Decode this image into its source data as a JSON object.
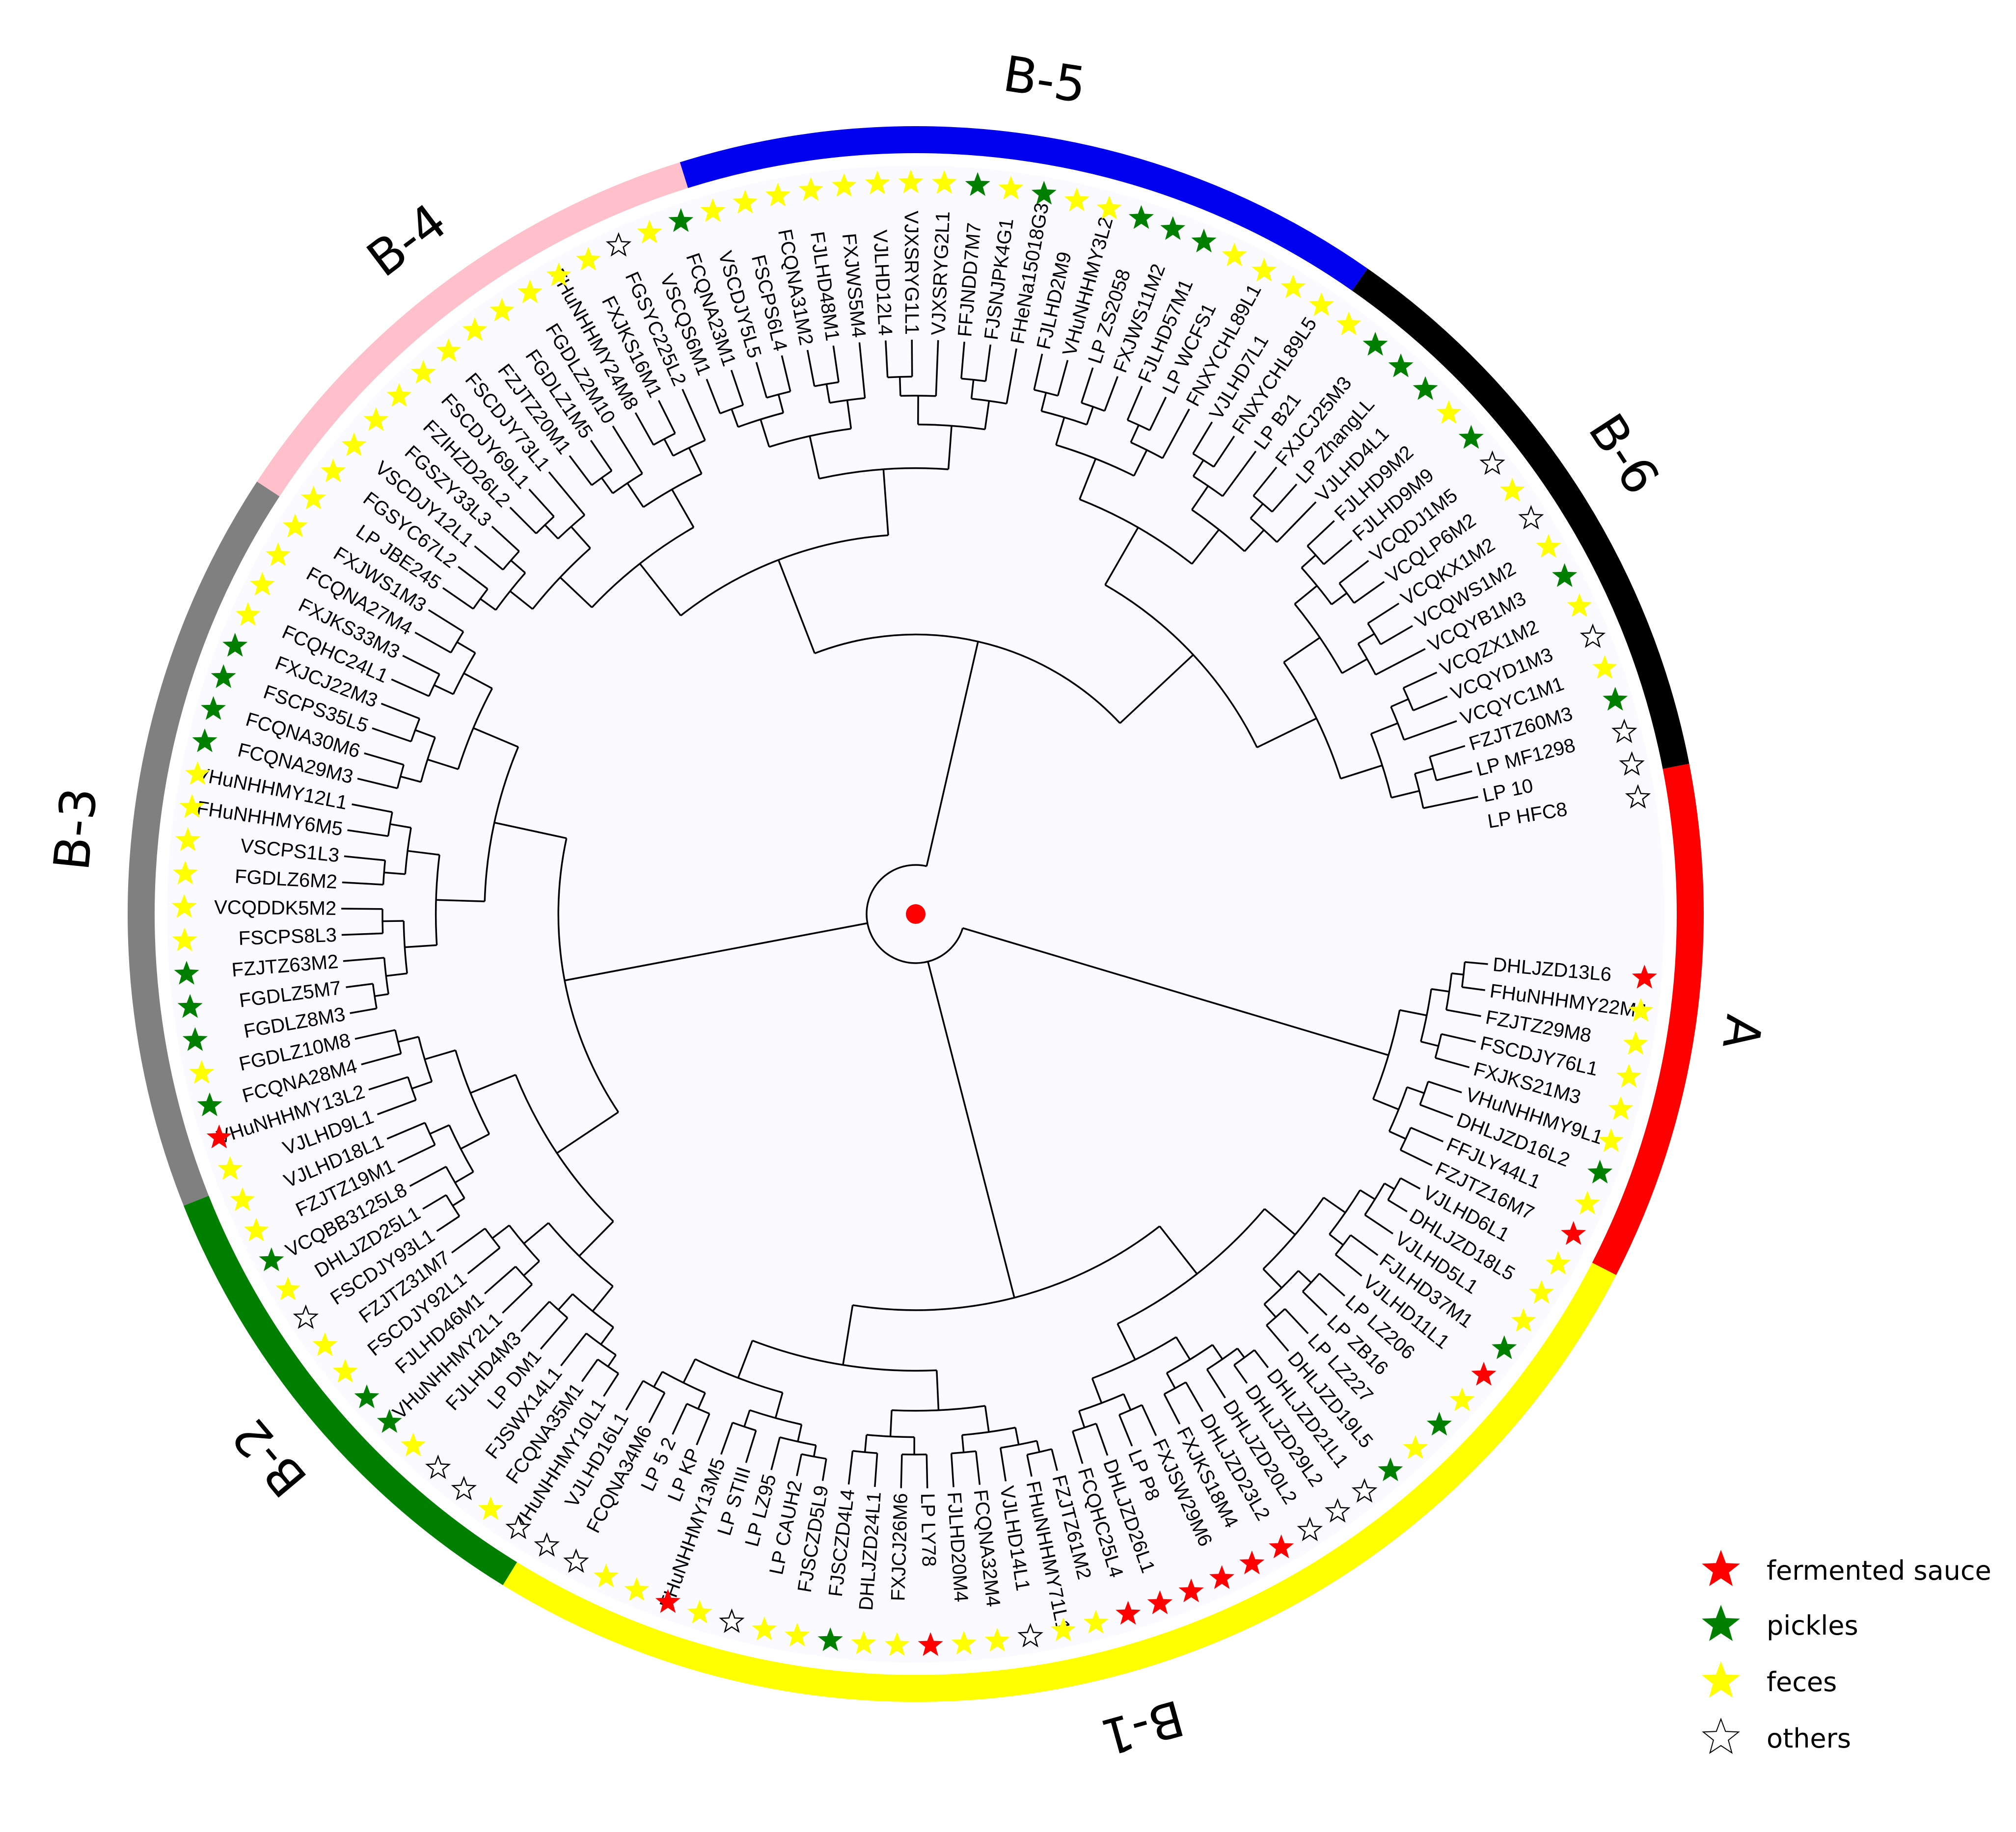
{
  "leaves": [
    {
      "label": "DHLJZD13L6",
      "source": "fermented"
    },
    {
      "label": "FHuNHHMY22M4",
      "source": "feces"
    },
    {
      "label": "FZJTZ29M8",
      "source": "feces"
    },
    {
      "label": "FSCDJY76L1",
      "source": "feces"
    },
    {
      "label": "FXJKS21M3",
      "source": "feces"
    },
    {
      "label": "VHuNHHMY9L1",
      "source": "feces"
    },
    {
      "label": "DHLJZD16L2",
      "source": "pickles"
    },
    {
      "label": "FFJLY44L1",
      "source": "feces"
    },
    {
      "label": "FZJTZ16M7",
      "source": "fermented"
    },
    {
      "label": "VJLHD6L1",
      "source": "feces"
    },
    {
      "label": "DHLJZD18L5",
      "source": "feces"
    },
    {
      "label": "VJLHD5L1",
      "source": "feces"
    },
    {
      "label": "FJLHD37M1",
      "source": "pickles"
    },
    {
      "label": "VJLHD11L1",
      "source": "fermented"
    },
    {
      "label": "LP LZ206",
      "source": "feces"
    },
    {
      "label": "LP ZB16",
      "source": "pickles"
    },
    {
      "label": "LP LZ227",
      "source": "feces"
    },
    {
      "label": "DHLJZD19L5",
      "source": "pickles"
    },
    {
      "label": "DHLJZD21L1",
      "source": "others"
    },
    {
      "label": "DHLJZD29L2",
      "source": "others"
    },
    {
      "label": "DHLJZD20L2",
      "source": "others"
    },
    {
      "label": "DHLJZD23L2",
      "source": "fermented"
    },
    {
      "label": "FXJKS18M4",
      "source": "fermented"
    },
    {
      "label": "FXJSW29M6",
      "source": "fermented"
    },
    {
      "label": "LP P8",
      "source": "fermented"
    },
    {
      "label": "DHLJZD26L1",
      "source": "fermented"
    },
    {
      "label": "FCQHC25L4",
      "source": "fermented"
    },
    {
      "label": "FZJTZ61M2",
      "source": "feces"
    },
    {
      "label": "FHuNHHMY71L1",
      "source": "feces"
    },
    {
      "label": "VJLHD14L1",
      "source": "others"
    },
    {
      "label": "FCQNA32M4",
      "source": "feces"
    },
    {
      "label": "FJLHD20M4",
      "source": "feces"
    },
    {
      "label": "LP LY78",
      "source": "fermented"
    },
    {
      "label": "FXJCJ26M6",
      "source": "feces"
    },
    {
      "label": "DHLJZD24L1",
      "source": "feces"
    },
    {
      "label": "FJSCZD4L4",
      "source": "pickles"
    },
    {
      "label": "FJSCZD5L9",
      "source": "feces"
    },
    {
      "label": "LP CAUH2",
      "source": "feces"
    },
    {
      "label": "LP LZ95",
      "source": "others"
    },
    {
      "label": "LP STIII",
      "source": "feces"
    },
    {
      "label": "FHuNHHMY13M5",
      "source": "fermented"
    },
    {
      "label": "LP KP",
      "source": "feces"
    },
    {
      "label": "LP 5 2",
      "source": "feces"
    },
    {
      "label": "FCQNA34M6",
      "source": "others"
    },
    {
      "label": "VJLHD16L1",
      "source": "others"
    },
    {
      "label": "VHuNHHMY10L1",
      "source": "others"
    },
    {
      "label": "FCQNA35M1",
      "source": "feces"
    },
    {
      "label": "FJSWX14L1",
      "source": "others"
    },
    {
      "label": "LP DM1",
      "source": "others"
    },
    {
      "label": "FJLHD4M3",
      "source": "feces"
    },
    {
      "label": "VHuNHHMY2L1",
      "source": "pickles"
    },
    {
      "label": "FJLHD46M1",
      "source": "pickles"
    },
    {
      "label": "FSCDJY92L1",
      "source": "feces"
    },
    {
      "label": "FZJTZ31M7",
      "source": "feces"
    },
    {
      "label": "FSCDJY93L1",
      "source": "others"
    },
    {
      "label": "DHLJZD25L1",
      "source": "feces"
    },
    {
      "label": "VCQBB3125L8",
      "source": "pickles"
    },
    {
      "label": "FZJTZ19M1",
      "source": "feces"
    },
    {
      "label": "VJLHD18L1",
      "source": "feces"
    },
    {
      "label": "VJLHD9L1",
      "source": "feces"
    },
    {
      "label": "VHuNHHMY13L2",
      "source": "fermented"
    },
    {
      "label": "FCQNA28M4",
      "source": "pickles"
    },
    {
      "label": "FGDLZ10M8",
      "source": "feces"
    },
    {
      "label": "FGDLZ8M3",
      "source": "pickles"
    },
    {
      "label": "FGDLZ5M7",
      "source": "pickles"
    },
    {
      "label": "FZJTZ63M2",
      "source": "pickles"
    },
    {
      "label": "FSCPS8L3",
      "source": "feces"
    },
    {
      "label": "VCQDDK5M2",
      "source": "feces"
    },
    {
      "label": "FGDLZ6M2",
      "source": "feces"
    },
    {
      "label": "VSCPS1L3",
      "source": "feces"
    },
    {
      "label": "FHuNHHMY6M5",
      "source": "feces"
    },
    {
      "label": "VHuNHHMY12L1",
      "source": "feces"
    },
    {
      "label": "FCQNA29M3",
      "source": "pickles"
    },
    {
      "label": "FCQNA30M6",
      "source": "pickles"
    },
    {
      "label": "FSCPS35L5",
      "source": "pickles"
    },
    {
      "label": "FXJCJ22M3",
      "source": "pickles"
    },
    {
      "label": "FCQHC24L1",
      "source": "feces"
    },
    {
      "label": "FXJKS33M3",
      "source": "feces"
    },
    {
      "label": "FCQNA27M4",
      "source": "feces"
    },
    {
      "label": "FXJWS1M3",
      "source": "feces"
    },
    {
      "label": "LP JBE245",
      "source": "feces"
    },
    {
      "label": "FGSYC67L2",
      "source": "feces"
    },
    {
      "label": "VSCDJY12L1",
      "source": "feces"
    },
    {
      "label": "FGSZY33L3",
      "source": "feces"
    },
    {
      "label": "FZIHZD26L2",
      "source": "feces"
    },
    {
      "label": "FSCDJY69L1",
      "source": "feces"
    },
    {
      "label": "FSCDJY73L1",
      "source": "feces"
    },
    {
      "label": "FZJTZ20M1",
      "source": "feces"
    },
    {
      "label": "FGDLZ1M5",
      "source": "feces"
    },
    {
      "label": "FGDLZ2M10",
      "source": "feces"
    },
    {
      "label": "FHuNHHMY24M8",
      "source": "feces"
    },
    {
      "label": "FXJKS16M1",
      "source": "feces"
    },
    {
      "label": "FGSYC225L2",
      "source": "others"
    },
    {
      "label": "VSCQS6M1",
      "source": "feces"
    },
    {
      "label": "FCQNA23M1",
      "source": "pickles"
    },
    {
      "label": "VSCDJY5L5",
      "source": "feces"
    },
    {
      "label": "FSCPS6L4",
      "source": "feces"
    },
    {
      "label": "FCQNA31M2",
      "source": "feces"
    },
    {
      "label": "FJLHD48M1",
      "source": "feces"
    },
    {
      "label": "FXJWS5M4",
      "source": "feces"
    },
    {
      "label": "VJLHD12L4",
      "source": "feces"
    },
    {
      "label": "VJXSRYG1L1",
      "source": "feces"
    },
    {
      "label": "VJXSRYG2L1",
      "source": "feces"
    },
    {
      "label": "FFJNDD7M7",
      "source": "pickles"
    },
    {
      "label": "FJSNJPK4G1",
      "source": "feces"
    },
    {
      "label": "FHeNa15018G3",
      "source": "pickles"
    },
    {
      "label": "FJLHD2M9",
      "source": "feces"
    },
    {
      "label": "VHuNHHMY3L2",
      "source": "feces"
    },
    {
      "label": "LP ZS2058",
      "source": "pickles"
    },
    {
      "label": "FXJWS11M2",
      "source": "pickles"
    },
    {
      "label": "FJLHD57M1",
      "source": "pickles"
    },
    {
      "label": "LP WCFS1",
      "source": "feces"
    },
    {
      "label": "FNXYCHL89L1",
      "source": "feces"
    },
    {
      "label": "VJLHD7L1",
      "source": "feces"
    },
    {
      "label": "FNXYCHL89L5",
      "source": "feces"
    },
    {
      "label": "LP B21",
      "source": "feces"
    },
    {
      "label": "FXJCJ25M3",
      "source": "pickles"
    },
    {
      "label": "LP ZhangLL",
      "source": "pickles"
    },
    {
      "label": "VJLHD4L1",
      "source": "pickles"
    },
    {
      "label": "FJLHD9M2",
      "source": "feces"
    },
    {
      "label": "FJLHD9M9",
      "source": "pickles"
    },
    {
      "label": "VCQDJ1M5",
      "source": "others"
    },
    {
      "label": "VCQLP6M2",
      "source": "feces"
    },
    {
      "label": "VCQKX1M2",
      "source": "others"
    },
    {
      "label": "VCQWS1M2",
      "source": "feces"
    },
    {
      "label": "VCQYB1M3",
      "source": "pickles"
    },
    {
      "label": "VCQZX1M2",
      "source": "feces"
    },
    {
      "label": "VCQYD1M3",
      "source": "others"
    },
    {
      "label": "VCQYC1M1",
      "source": "feces"
    },
    {
      "label": "FZJTZ60M3",
      "source": "pickles"
    },
    {
      "label": "LP MF1298",
      "source": "others"
    },
    {
      "label": "LP 10",
      "source": "others"
    },
    {
      "label": "LP HFC8",
      "source": "others"
    }
  ],
  "clades": [
    {
      "label": "A",
      "color": "#ff0000"
    },
    {
      "label": "B-1",
      "color": "#ffff00"
    },
    {
      "label": "B-2",
      "color": "#007f00"
    },
    {
      "label": "B-3",
      "color": "#808080"
    },
    {
      "label": "B-4",
      "color": "#ffc0cb"
    },
    {
      "label": "B-5",
      "color": "#0000ee"
    },
    {
      "label": "B-6",
      "color": "#000000"
    }
  ],
  "legend": [
    {
      "key": "fermented",
      "label": "fermented sauce",
      "color": "#ff0000"
    },
    {
      "key": "pickles",
      "label": "pickles",
      "color": "#007f00"
    },
    {
      "key": "feces",
      "label": "feces",
      "color": "#ffff00"
    },
    {
      "key": "others",
      "label": "others",
      "color": "#ffffff"
    }
  ],
  "root_color": "#ff0000"
}
